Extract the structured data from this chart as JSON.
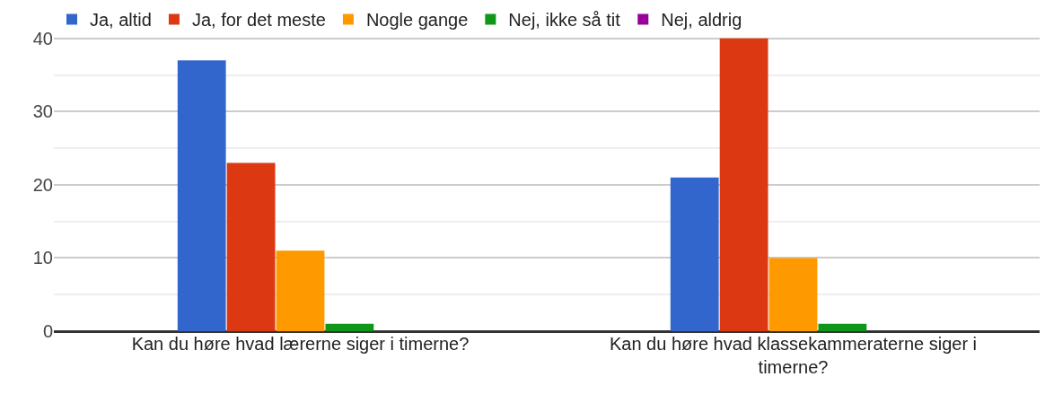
{
  "chart_data": {
    "type": "bar",
    "categories": [
      "Kan du høre hvad lærerne siger i timerne?",
      "Kan du høre hvad klassekammeraterne siger i timerne?"
    ],
    "series": [
      {
        "name": "Ja, altid",
        "color": "#3366cc",
        "values": [
          37,
          21
        ]
      },
      {
        "name": "Ja, for det meste",
        "color": "#dc3912",
        "values": [
          23,
          40
        ]
      },
      {
        "name": "Nogle gange",
        "color": "#ff9900",
        "values": [
          11,
          10
        ]
      },
      {
        "name": "Nej, ikke så tit",
        "color": "#109618",
        "values": [
          1,
          1
        ]
      },
      {
        "name": "Nej, aldrig",
        "color": "#990099",
        "values": [
          0,
          0
        ]
      }
    ],
    "ylim": [
      0,
      45
    ],
    "yticks": [
      0,
      10,
      20,
      30,
      40
    ],
    "grid": "y",
    "legend": "top"
  }
}
